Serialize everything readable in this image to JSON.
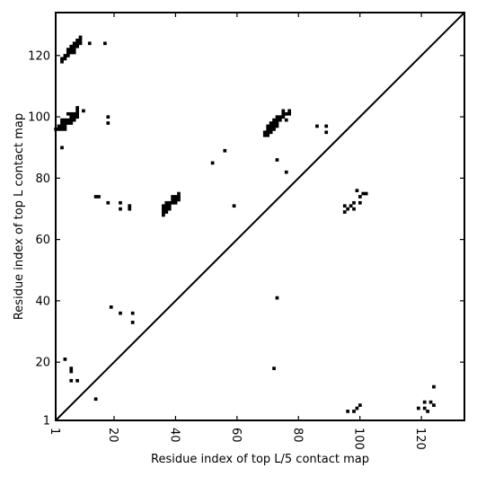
{
  "chart_data": {
    "type": "scatter",
    "xlabel": "Residue index of top L/5 contact map",
    "ylabel": "Residue index of top L contact map",
    "xlim": [
      1,
      134
    ],
    "ylim": [
      1,
      134
    ],
    "x_ticks": [
      1,
      20,
      40,
      60,
      80,
      100,
      120
    ],
    "y_ticks": [
      1,
      20,
      40,
      60,
      80,
      100,
      120
    ],
    "x_tick_labels": [
      "1",
      "20",
      "40",
      "60",
      "80",
      "100",
      "120"
    ],
    "y_tick_labels": [
      "1",
      "20",
      "40",
      "60",
      "80",
      "100",
      "120"
    ],
    "diagonal": true,
    "grid": false,
    "marker_color": "#000000",
    "series": [
      {
        "points_upper": [
          [
            3,
            119
          ],
          [
            3,
            118
          ],
          [
            4,
            119
          ],
          [
            4,
            120
          ],
          [
            5,
            120
          ],
          [
            5,
            121
          ],
          [
            5,
            122
          ],
          [
            6,
            121
          ],
          [
            6,
            122
          ],
          [
            6,
            123
          ],
          [
            7,
            121
          ],
          [
            7,
            122
          ],
          [
            7,
            123
          ],
          [
            7,
            124
          ],
          [
            8,
            123
          ],
          [
            8,
            124
          ],
          [
            8,
            125
          ],
          [
            9,
            124
          ],
          [
            9,
            125
          ],
          [
            9,
            126
          ],
          [
            12,
            124
          ],
          [
            17,
            124
          ],
          [
            1,
            96
          ],
          [
            2,
            96
          ],
          [
            2,
            97
          ],
          [
            3,
            96
          ],
          [
            3,
            97
          ],
          [
            3,
            98
          ],
          [
            3,
            99
          ],
          [
            4,
            96
          ],
          [
            4,
            97
          ],
          [
            4,
            98
          ],
          [
            4,
            99
          ],
          [
            5,
            98
          ],
          [
            5,
            99
          ],
          [
            5,
            101
          ],
          [
            6,
            98
          ],
          [
            6,
            99
          ],
          [
            6,
            100
          ],
          [
            6,
            101
          ],
          [
            7,
            99
          ],
          [
            7,
            100
          ],
          [
            7,
            101
          ],
          [
            8,
            100
          ],
          [
            8,
            101
          ],
          [
            8,
            102
          ],
          [
            8,
            103
          ],
          [
            10,
            102
          ],
          [
            3,
            90
          ],
          [
            18,
            100
          ],
          [
            18,
            98
          ],
          [
            14,
            74
          ],
          [
            15,
            74
          ],
          [
            18,
            72
          ],
          [
            22,
            72
          ],
          [
            22,
            70
          ],
          [
            25,
            70
          ],
          [
            25,
            71
          ],
          [
            36,
            68
          ],
          [
            36,
            69
          ],
          [
            36,
            70
          ],
          [
            36,
            71
          ],
          [
            37,
            69
          ],
          [
            37,
            70
          ],
          [
            37,
            71
          ],
          [
            37,
            72
          ],
          [
            38,
            70
          ],
          [
            38,
            71
          ],
          [
            38,
            72
          ],
          [
            39,
            72
          ],
          [
            39,
            73
          ],
          [
            39,
            74
          ],
          [
            40,
            72
          ],
          [
            40,
            73
          ],
          [
            40,
            74
          ],
          [
            41,
            73
          ],
          [
            41,
            74
          ],
          [
            41,
            75
          ],
          [
            52,
            85
          ],
          [
            56,
            89
          ],
          [
            59,
            71
          ],
          [
            69,
            94
          ],
          [
            69,
            95
          ],
          [
            70,
            94
          ],
          [
            70,
            95
          ],
          [
            70,
            96
          ],
          [
            70,
            97
          ],
          [
            71,
            95
          ],
          [
            71,
            96
          ],
          [
            71,
            97
          ],
          [
            71,
            98
          ],
          [
            72,
            96
          ],
          [
            72,
            97
          ],
          [
            72,
            98
          ],
          [
            72,
            99
          ],
          [
            73,
            97
          ],
          [
            73,
            98
          ],
          [
            73,
            99
          ],
          [
            73,
            100
          ],
          [
            74,
            99
          ],
          [
            74,
            100
          ],
          [
            75,
            100
          ],
          [
            75,
            101
          ],
          [
            75,
            102
          ],
          [
            76,
            99
          ],
          [
            76,
            101
          ],
          [
            77,
            101
          ],
          [
            77,
            102
          ],
          [
            73,
            86
          ],
          [
            76,
            82
          ],
          [
            86,
            97
          ],
          [
            89,
            97
          ],
          [
            89,
            95
          ],
          [
            73,
            41
          ],
          [
            19,
            38
          ],
          [
            22,
            36
          ],
          [
            26,
            36
          ],
          [
            26,
            33
          ]
        ],
        "points_lower": [
          [
            4,
            21
          ],
          [
            6,
            18
          ],
          [
            6,
            17
          ],
          [
            6,
            14
          ],
          [
            8,
            14
          ],
          [
            14,
            8
          ],
          [
            72,
            18
          ],
          [
            95,
            69
          ],
          [
            95,
            71
          ],
          [
            96,
            70
          ],
          [
            97,
            71
          ],
          [
            98,
            70
          ],
          [
            98,
            72
          ],
          [
            99,
            76
          ],
          [
            100,
            74
          ],
          [
            100,
            72
          ],
          [
            101,
            75
          ],
          [
            102,
            75
          ],
          [
            96,
            4
          ],
          [
            98,
            4
          ],
          [
            99,
            5
          ],
          [
            100,
            6
          ],
          [
            119,
            5
          ],
          [
            121,
            5
          ],
          [
            121,
            7
          ],
          [
            122,
            4
          ],
          [
            123,
            7
          ],
          [
            124,
            6
          ],
          [
            124,
            12
          ]
        ]
      }
    ]
  }
}
